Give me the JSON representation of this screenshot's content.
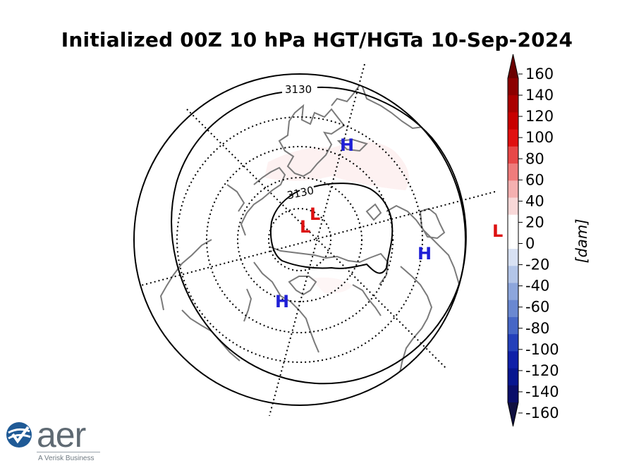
{
  "title": "Initialized 00Z 10 hPa HGT/HGTa 10-Sep-2024",
  "colorbar": {
    "ticks": [
      "160",
      "140",
      "120",
      "100",
      "80",
      "60",
      "40",
      "20",
      "0",
      "-20",
      "-40",
      "-60",
      "-80",
      "-100",
      "-120",
      "-140",
      "-160"
    ],
    "unit": "[dam]",
    "colors": [
      "#6b0000",
      "#8c0000",
      "#aa0000",
      "#c80000",
      "#e01010",
      "#e84848",
      "#ef7c7c",
      "#f4b0b0",
      "#f8d8d8",
      "#ffffff",
      "#ffffff",
      "#d8e1f3",
      "#b3c5e8",
      "#8da6dc",
      "#6a88d1",
      "#4767c6",
      "#2440ba",
      "#0f20a8",
      "#071690",
      "#0a0e6a",
      "#101040"
    ]
  },
  "contour_labels": [
    {
      "text": "3130"
    },
    {
      "text": "3130"
    }
  ],
  "centers": [
    {
      "text": "H",
      "color": "#1f1fd6"
    },
    {
      "text": "H",
      "color": "#1f1fd6"
    },
    {
      "text": "H",
      "color": "#1f1fd6"
    },
    {
      "text": "L",
      "color": "#dd1111"
    },
    {
      "text": "L",
      "color": "#dd1111"
    },
    {
      "text": "L",
      "color": "#dd1111"
    }
  ],
  "logo": {
    "word": "aer",
    "tagline": "A Verisk Business",
    "color": "#1f5a96"
  }
}
